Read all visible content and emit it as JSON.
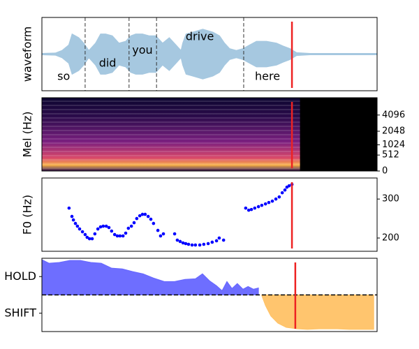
{
  "chart_data": [
    {
      "type": "area",
      "mirror": true,
      "ylabel": "waveform",
      "color": "#a6c8e0",
      "xlim": [
        0,
        100
      ],
      "ylim": [
        -1,
        1
      ],
      "x": [
        0,
        4,
        6,
        8,
        9,
        11,
        12.5,
        14,
        16,
        17.5,
        19,
        21,
        23,
        25,
        26.5,
        28,
        30,
        32,
        34,
        36,
        38,
        40,
        41.5,
        42,
        43,
        45,
        48,
        51,
        53,
        54.5,
        56,
        58,
        60,
        62,
        64,
        67,
        70,
        72,
        74,
        76,
        80,
        100
      ],
      "values": [
        0.02,
        0.03,
        0.1,
        0.25,
        0.55,
        0.45,
        0.3,
        0.1,
        0.3,
        0.55,
        0.55,
        0.5,
        0.3,
        0.35,
        0.5,
        0.55,
        0.55,
        0.5,
        0.5,
        0.3,
        0.45,
        0.25,
        0.1,
        0.3,
        0.55,
        0.6,
        0.68,
        0.6,
        0.5,
        0.3,
        0.15,
        0.1,
        0.15,
        0.25,
        0.35,
        0.35,
        0.3,
        0.22,
        0.15,
        0.04,
        0.02,
        0.02
      ],
      "boundaries": [
        12.9,
        26.0,
        34.2,
        60.2
      ],
      "annotations": [
        {
          "text": "so",
          "x": 6.5,
          "y": -0.62
        },
        {
          "text": "did",
          "x": 19.6,
          "y": -0.26
        },
        {
          "text": "you",
          "x": 30,
          "y": 0.1
        },
        {
          "text": "drive",
          "x": 47.1,
          "y": 0.47
        },
        {
          "text": "here",
          "x": 67.3,
          "y": -0.62
        }
      ],
      "marker": 74.6,
      "marker_color": "#ee2222"
    },
    {
      "type": "spectrogram",
      "ylabel": "Mel (Hz)",
      "yscale": "mel",
      "yaxis_side": "right",
      "xlim": [
        0,
        100
      ],
      "ylim": [
        0,
        8000
      ],
      "yticks": [
        0,
        512,
        1024,
        2048,
        4096
      ],
      "signal_end": 77,
      "marker": 74.6,
      "marker_color": "#ee2222"
    },
    {
      "type": "scatter",
      "ylabel": "F0 (Hz)",
      "yaxis_side": "right",
      "color": "#0000ff",
      "xlim": [
        0,
        100
      ],
      "ylim": [
        166,
        354
      ],
      "yticks": [
        200,
        300
      ],
      "x": [
        8.1,
        8.96,
        9.4,
        10.0,
        10.6,
        11.25,
        12.1,
        12.9,
        13.5,
        14.2,
        15.0,
        15.8,
        16.7,
        17.5,
        18.3,
        19.2,
        20.0,
        20.8,
        21.7,
        22.5,
        23.3,
        24.2,
        25.0,
        25.8,
        26.7,
        27.5,
        28.3,
        29.2,
        30.0,
        30.8,
        31.7,
        32.5,
        33.3,
        34.6,
        35.4,
        36.25,
        39.6,
        40.4,
        41.25,
        42.1,
        42.9,
        43.75,
        44.8,
        45.8,
        47.1,
        48.3,
        49.6,
        50.8,
        52.1,
        52.9,
        54.2,
        60.8,
        61.7,
        62.5,
        63.5,
        64.6,
        65.6,
        66.7,
        67.7,
        68.75,
        69.8,
        70.8,
        71.7,
        72.5,
        73.1,
        73.75,
        74.6
      ],
      "values": [
        276.8,
        255.4,
        246.4,
        237.5,
        230.4,
        223.2,
        216.1,
        208.9,
        201.8,
        198.2,
        198.2,
        210.7,
        223.2,
        228.6,
        230.4,
        230.4,
        226.8,
        217.9,
        208.9,
        205.4,
        205.4,
        205.4,
        212.5,
        225,
        230.4,
        239.3,
        250,
        257.1,
        260.7,
        260.7,
        255.4,
        248.2,
        237.5,
        219.6,
        205.4,
        210.7,
        210.7,
        194.6,
        191.1,
        187.5,
        185.7,
        183.9,
        182.1,
        182.1,
        182.1,
        183.9,
        185.7,
        189.3,
        192.9,
        200,
        194.6,
        276.8,
        271.4,
        273.2,
        276.8,
        280.4,
        283.9,
        287.5,
        291.1,
        294.6,
        300,
        305.4,
        316.1,
        323.2,
        330.4,
        333.9,
        337.5
      ],
      "marker": 74.6,
      "marker_color": "#ee2222"
    },
    {
      "type": "area",
      "yaxis_side": "left",
      "xlim": [
        0,
        100
      ],
      "ylim": [
        -2,
        2
      ],
      "yticks": [
        {
          "value": 1,
          "label": "HOLD"
        },
        {
          "value": -1,
          "label": "SHIFT"
        }
      ],
      "threshold": 0,
      "series": [
        {
          "color": "#6666ff",
          "x": [
            0,
            2.1,
            5.2,
            8.3,
            11.5,
            14.6,
            17.7,
            20.8,
            24.0,
            27.1,
            30.2,
            33.3,
            36.5,
            39.6,
            42.7,
            45.8,
            47.9,
            50,
            52.1,
            53.75,
            55.2,
            56.7,
            58.3,
            60,
            61.5,
            63.1,
            64.6
          ],
          "values": [
            1.92,
            1.73,
            1.77,
            1.88,
            1.88,
            1.77,
            1.73,
            1.46,
            1.42,
            1.27,
            1.15,
            0.92,
            0.73,
            0.73,
            0.85,
            0.88,
            1.15,
            0.77,
            0.5,
            0.23,
            0.73,
            0.35,
            0.62,
            0.31,
            0.46,
            0.31,
            0.38
          ]
        },
        {
          "color": "#ffc266",
          "x": [
            65.6,
            66.7,
            68.3,
            70.4,
            72.9,
            76.0,
            79.2,
            83.3,
            87.5,
            91.7,
            95.8,
            99.0
          ],
          "values": [
            -0.04,
            -0.58,
            -1.15,
            -1.54,
            -1.77,
            -1.85,
            -1.88,
            -1.85,
            -1.85,
            -1.88,
            -1.88,
            -1.88
          ]
        }
      ],
      "marker": 75.6,
      "marker_color": "#ee2222"
    }
  ]
}
